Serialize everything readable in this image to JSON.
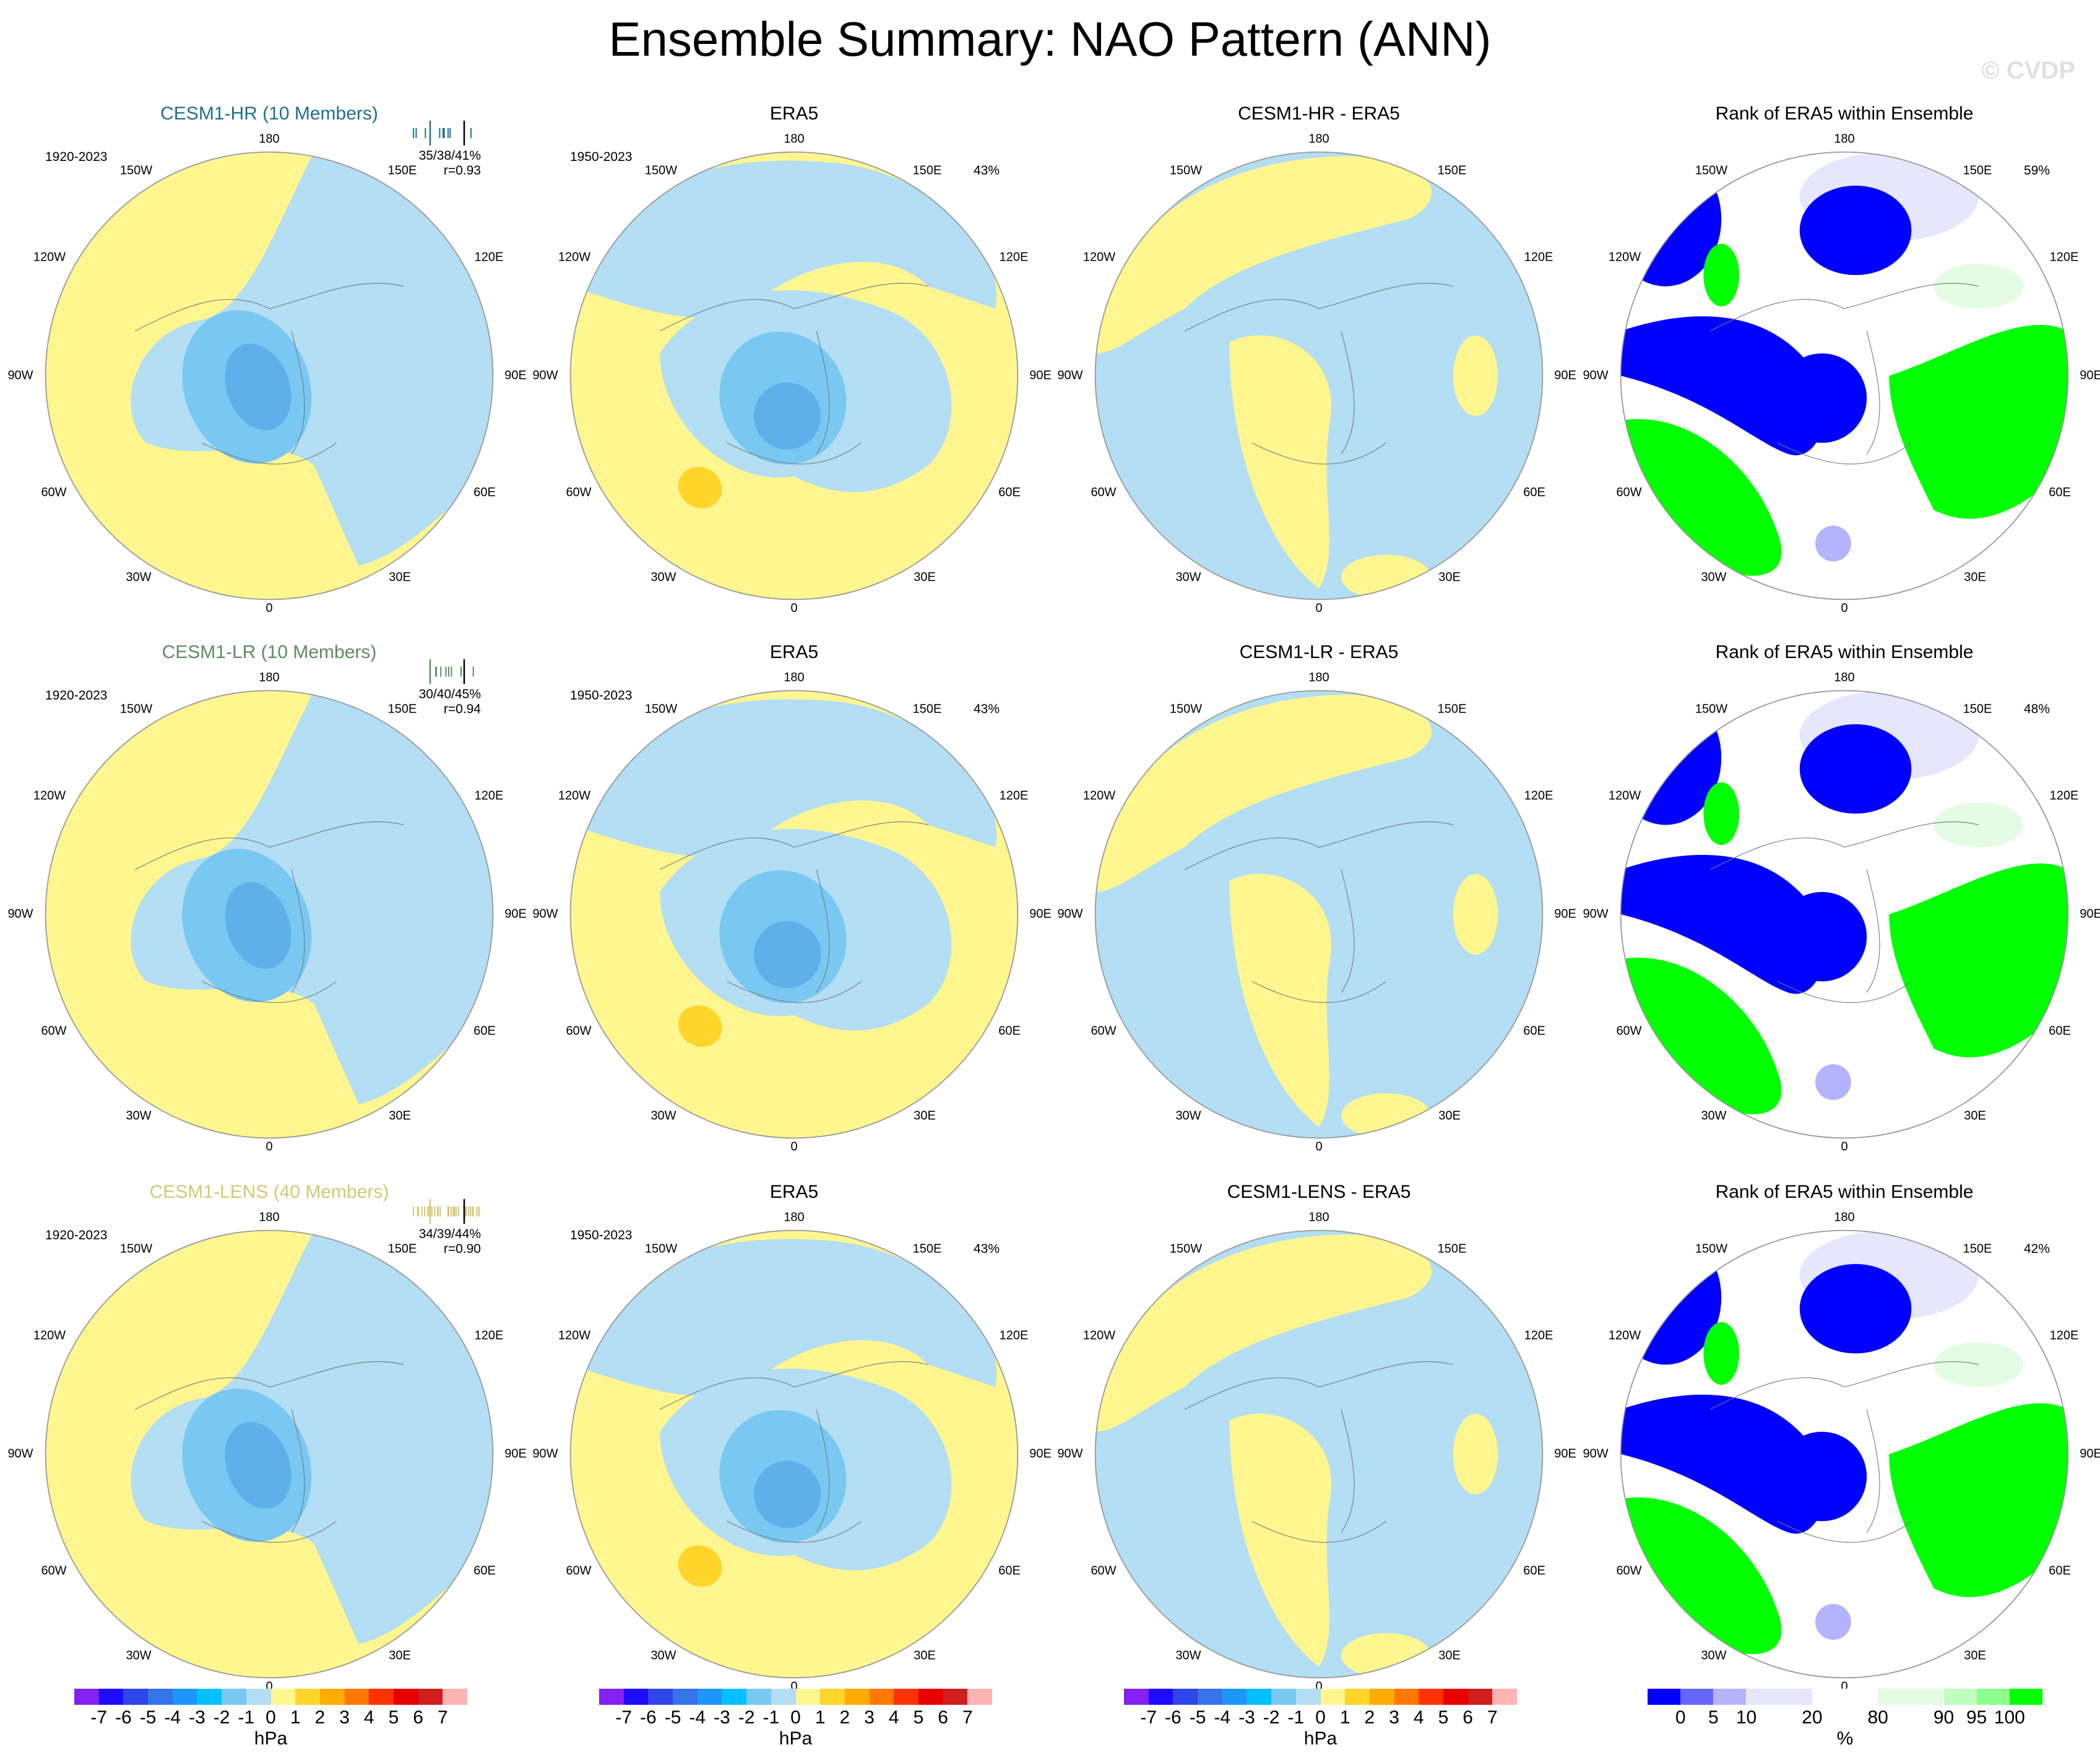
{
  "title": "Ensemble Summary: NAO Pattern (ANN)",
  "watermark": "© CVDP",
  "lon_labels": {
    "n": "180",
    "s": "0",
    "nw": "150W",
    "ne": "150E",
    "wnw": "120W",
    "ene": "120E",
    "w": "90W",
    "e": "90E",
    "wsw": "60W",
    "esw": "60E",
    "ssw": "30W",
    "sse": "30E"
  },
  "colors": {
    "model_hr": "#1f6f8b",
    "model_lr": "#5e8c5e",
    "model_lens": "#d4c774",
    "pattern_pos": "#fff68f",
    "pattern_neg": "#b3def3"
  },
  "rows": [
    {
      "panels": [
        {
          "kind": "model",
          "title": "CESM1-HR (10 Members)",
          "color": "#1f6f8b",
          "period": "1920-2023",
          "stats": "35/38/41%",
          "r": "r=0.93"
        },
        {
          "kind": "obs",
          "title": "ERA5",
          "period": "1950-2023",
          "pct": "43%"
        },
        {
          "kind": "diff",
          "title": "CESM1-HR - ERA5"
        },
        {
          "kind": "rank",
          "title": "Rank of ERA5 within Ensemble",
          "pct": "59%"
        }
      ]
    },
    {
      "panels": [
        {
          "kind": "model",
          "title": "CESM1-LR (10 Members)",
          "color": "#5e8c5e",
          "period": "1920-2023",
          "stats": "30/40/45%",
          "r": "r=0.94"
        },
        {
          "kind": "obs",
          "title": "ERA5",
          "period": "1950-2023",
          "pct": "43%"
        },
        {
          "kind": "diff",
          "title": "CESM1-LR - ERA5"
        },
        {
          "kind": "rank",
          "title": "Rank of ERA5 within Ensemble",
          "pct": "48%"
        }
      ]
    },
    {
      "panels": [
        {
          "kind": "model",
          "title": "CESM1-LENS (40 Members)",
          "color": "#d4c774",
          "period": "1920-2023",
          "stats": "34/39/44%",
          "r": "r=0.90"
        },
        {
          "kind": "obs",
          "title": "ERA5",
          "period": "1950-2023",
          "pct": "43%"
        },
        {
          "kind": "diff",
          "title": "CESM1-LENS - ERA5"
        },
        {
          "kind": "rank",
          "title": "Rank of ERA5 within Ensemble",
          "pct": "42%"
        }
      ]
    }
  ],
  "colorbar_hpa": {
    "top_label": "0",
    "unit": "hPa",
    "labels": [
      "-7",
      "-6",
      "-5",
      "-4",
      "-3",
      "-2",
      "-1",
      "0",
      "1",
      "2",
      "3",
      "4",
      "5",
      "6",
      "7"
    ],
    "colors": [
      "#8221f0",
      "#1e0cff",
      "#2f46e8",
      "#3574e8",
      "#1e96ff",
      "#00c0ff",
      "#78c8f2",
      "#b3def3",
      "#fff68f",
      "#ffd52b",
      "#ffab00",
      "#ff7800",
      "#ff3200",
      "#e60000",
      "#d01e1e",
      "#ffb4b4"
    ]
  },
  "colorbar_rank": {
    "top_label": "0",
    "unit": "%",
    "labels": [
      "0",
      "5",
      "10",
      "20",
      "80",
      "90",
      "95",
      "100"
    ],
    "colors": [
      "#0000ff",
      "#6666ff",
      "#b3b3ff",
      "#e6e6fc",
      "#ffffff",
      "#e3fce3",
      "#bfffbf",
      "#8cff8c",
      "#00ff00"
    ],
    "widths": [
      1,
      1,
      1,
      2,
      2,
      2,
      1,
      1,
      1
    ]
  }
}
